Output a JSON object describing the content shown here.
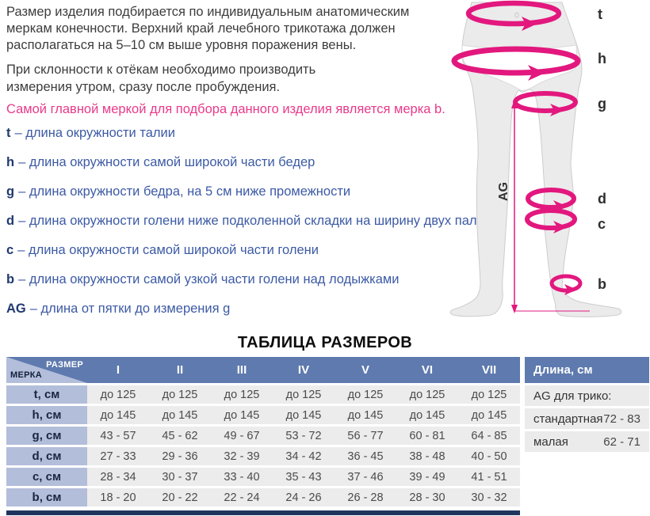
{
  "intro": {
    "p1": "Размер изделия подбирается по индивидуальным анатомическим меркам конечности. Верхний край лечебного трикотажа должен располагаться на 5–10 см выше уровня поражения вены.",
    "p2": "При склонности к отёкам необходимо производить измерения утром, сразу после пробуждения.",
    "highlight": "Самой главной меркой для подбора данного изделия является мерка b."
  },
  "measurements": {
    "items": [
      {
        "key": "t",
        "desc": "– длина окружности талии"
      },
      {
        "key": "h",
        "desc": "– длина окружности самой широкой части бедер"
      },
      {
        "key": "g",
        "desc": "– длина окружности бедра, на 5 см ниже промежности"
      },
      {
        "key": "d",
        "desc": "– длина окружности голени ниже подколенной складки на ширину двух пальцев"
      },
      {
        "key": "c",
        "desc": "– длина окружности самой широкой части голени"
      },
      {
        "key": "b",
        "desc": "– длина окружности самой узкой части голени над лодыжками"
      },
      {
        "key": "AG",
        "desc": "– длина от пятки до измерения g"
      }
    ]
  },
  "diagram": {
    "labels": {
      "t": "t",
      "h": "h",
      "g": "g",
      "d": "d",
      "c": "c",
      "b": "b",
      "ag": "AG"
    },
    "arrow_color": "#e2187e",
    "body_fill": "#ebebeb"
  },
  "size_table": {
    "title": "ТАБЛИЦА РАЗМЕРОВ",
    "corner": {
      "top": "РАЗМЕР",
      "bottom": "МЕРКА"
    },
    "columns": [
      "I",
      "II",
      "III",
      "IV",
      "V",
      "VI",
      "VII"
    ],
    "rows": [
      {
        "label": "t, см",
        "values": [
          "до 125",
          "до 125",
          "до 125",
          "до 125",
          "до 125",
          "до 125",
          "до 125"
        ]
      },
      {
        "label": "h, см",
        "values": [
          "до 145",
          "до 145",
          "до 145",
          "до 145",
          "до 145",
          "до 145",
          "до 145"
        ]
      },
      {
        "label": "g, см",
        "values": [
          "43 - 57",
          "45 - 62",
          "49 - 67",
          "53 - 72",
          "56 - 77",
          "60 - 81",
          "64 - 85"
        ]
      },
      {
        "label": "d, см",
        "values": [
          "27 - 33",
          "29 - 36",
          "32 - 39",
          "34 - 42",
          "36 - 45",
          "38 - 48",
          "40 - 50"
        ]
      },
      {
        "label": "c, см",
        "values": [
          "28 - 34",
          "30 - 37",
          "33 - 40",
          "35 - 43",
          "37 - 46",
          "39 - 49",
          "41 - 51"
        ]
      },
      {
        "label": "b, см",
        "values": [
          "18 - 20",
          "20 - 22",
          "22 - 24",
          "24 - 26",
          "26 - 28",
          "28 - 30",
          "30 - 32"
        ]
      }
    ]
  },
  "length_panel": {
    "header": "Длина, см",
    "intro_row": "AG для трико:",
    "rows": [
      {
        "label": "стандартная",
        "value": "72 - 83"
      },
      {
        "label": "малая",
        "value": "62 - 71"
      }
    ]
  },
  "colors": {
    "header_blue": "#5e7aae",
    "label_blue": "#b3bedb",
    "cell_gray": "#ececec",
    "pink": "#e93a8a",
    "accent_bar": "#20355e"
  }
}
